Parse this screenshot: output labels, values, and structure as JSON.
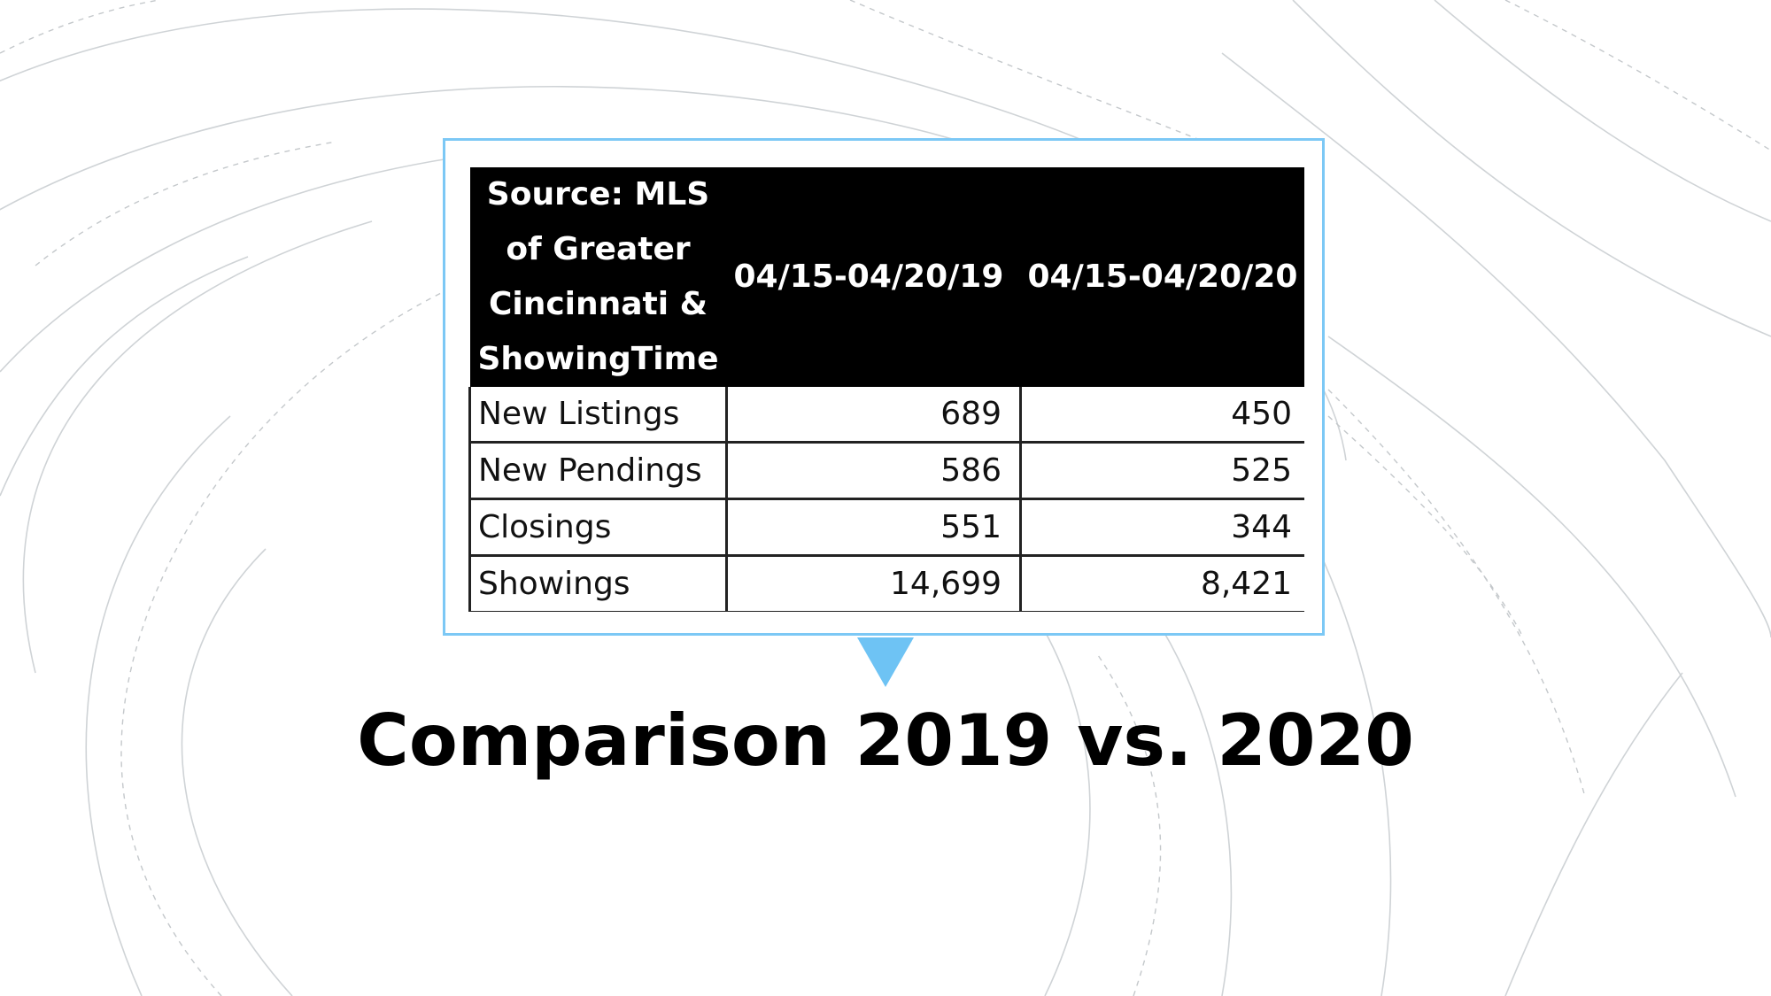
{
  "background": {
    "color": "#ffffff",
    "line_color": "#cfd3d6",
    "dash_color": "#c4c8cb"
  },
  "callout": {
    "border_color": "#7cc8f5",
    "pointer_color": "#6ec3f4"
  },
  "table": {
    "header": {
      "source": "Source: MLS\nof Greater\nCincinnati &\nShowingTime",
      "period_2019": "04/15-04/20/19",
      "period_2020": "04/15-04/20/20"
    },
    "rows": [
      {
        "label": "New Listings",
        "value_2019": "689",
        "value_2020": "450"
      },
      {
        "label": "New Pendings",
        "value_2019": "586",
        "value_2020": "525"
      },
      {
        "label": "Closings",
        "value_2019": "551",
        "value_2020": "344"
      },
      {
        "label": "Showings",
        "value_2019": "14,699",
        "value_2020": "8,421"
      }
    ]
  },
  "title": "Comparison 2019 vs. 2020"
}
